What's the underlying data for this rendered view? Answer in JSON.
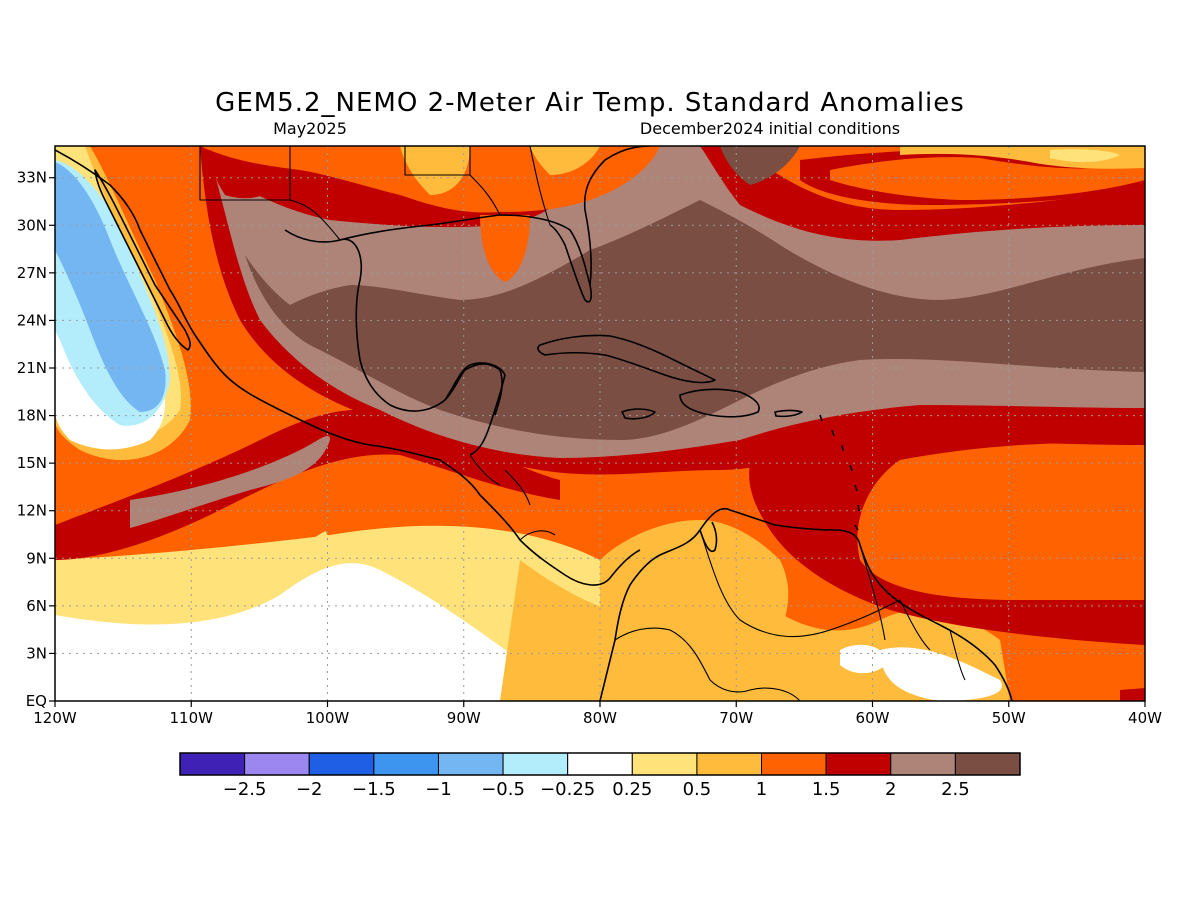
{
  "title": "GEM5.2_NEMO 2-Meter Air Temp. Standard Anomalies",
  "subtitle_left": "May2025",
  "subtitle_right": "December2024 initial conditions",
  "map": {
    "lon_range": [
      -120,
      -40
    ],
    "lat_range": [
      0,
      35
    ],
    "lon_ticks": [
      {
        "value": -120,
        "label": "120W"
      },
      {
        "value": -110,
        "label": "110W"
      },
      {
        "value": -100,
        "label": "100W"
      },
      {
        "value": -90,
        "label": "90W"
      },
      {
        "value": -80,
        "label": "80W"
      },
      {
        "value": -70,
        "label": "70W"
      },
      {
        "value": -60,
        "label": "60W"
      },
      {
        "value": -50,
        "label": "50W"
      },
      {
        "value": -40,
        "label": "40W"
      }
    ],
    "lat_ticks": [
      {
        "value": 0,
        "label": "EQ"
      },
      {
        "value": 3,
        "label": "3N"
      },
      {
        "value": 6,
        "label": "6N"
      },
      {
        "value": 9,
        "label": "9N"
      },
      {
        "value": 12,
        "label": "12N"
      },
      {
        "value": 15,
        "label": "15N"
      },
      {
        "value": 18,
        "label": "18N"
      },
      {
        "value": 21,
        "label": "21N"
      },
      {
        "value": 24,
        "label": "24N"
      },
      {
        "value": 27,
        "label": "27N"
      },
      {
        "value": 30,
        "label": "30N"
      },
      {
        "value": 33,
        "label": "33N"
      }
    ],
    "grid_dotted": true
  },
  "colorbar": {
    "colors": [
      "#3f22b5",
      "#9c87f0",
      "#1e5fe6",
      "#3e95f0",
      "#74b6f2",
      "#b3ecfa",
      "#ffffff",
      "#ffe37a",
      "#ffbb3c",
      "#ff6200",
      "#c00000",
      "#ae8478",
      "#7a4e42"
    ],
    "labels": [
      "-2.5",
      "-2",
      "-1.5",
      "-1",
      "-0.5",
      "-0.25",
      "0.25",
      "0.5",
      "1",
      "1.5",
      "2",
      "2.5"
    ]
  }
}
